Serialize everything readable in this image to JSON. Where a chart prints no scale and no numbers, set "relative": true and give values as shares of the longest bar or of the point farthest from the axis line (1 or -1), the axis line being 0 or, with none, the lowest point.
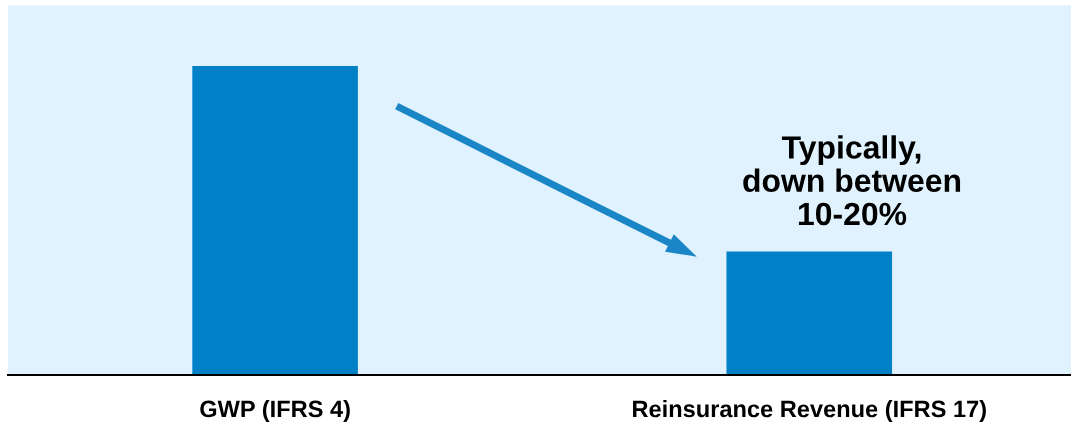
{
  "chart_data": {
    "type": "bar",
    "relative": true,
    "categories": [
      "GWP (IFRS 4)",
      "Reinsurance Revenue (IFRS 17)"
    ],
    "values": [
      1,
      0.4
    ],
    "color": "#0080c6",
    "annotations": [
      "Typically,\ndown between\n10-20%"
    ],
    "grid": false,
    "legend": false
  }
}
